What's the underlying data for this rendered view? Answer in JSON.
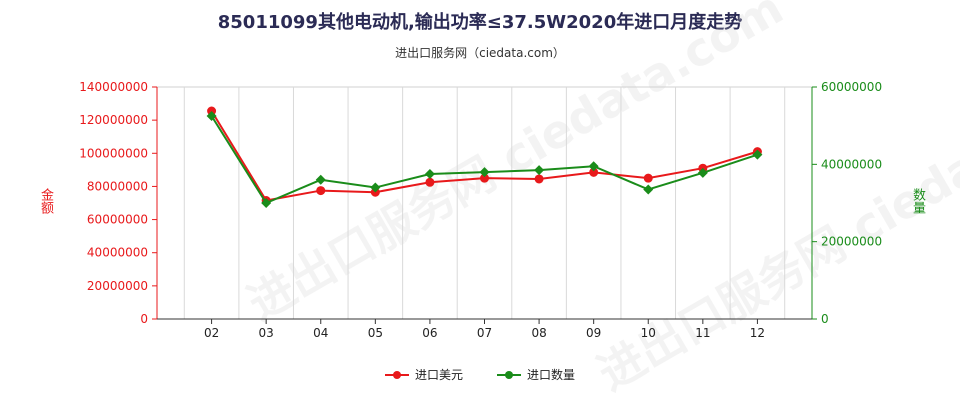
{
  "chart_data": {
    "type": "line",
    "title": "85011099其他电动机,输出功率≤37.5W2020年进口月度走势",
    "subtitle": "进出口服务网（ciedata.com）",
    "watermark": "进出口服务网 ciedata.com",
    "categories": [
      "02",
      "03",
      "04",
      "05",
      "06",
      "07",
      "08",
      "09",
      "10",
      "11",
      "12"
    ],
    "left_axis": {
      "label": "金额",
      "ylim": [
        0,
        140000000
      ],
      "ticks": [
        "0",
        "20000000",
        "40000000",
        "60000000",
        "80000000",
        "100000000",
        "120000000",
        "140000000"
      ],
      "color": "#e8191b"
    },
    "right_axis": {
      "label": "数量",
      "ylim": [
        0,
        60000000
      ],
      "ticks": [
        "0",
        "20000000",
        "40000000",
        "60000000"
      ],
      "color": "#1a8c1a"
    },
    "series": [
      {
        "name": "进口美元",
        "axis": "left",
        "color": "#e8191b",
        "values": [
          125500000,
          71500000,
          77500000,
          76500000,
          82500000,
          85000000,
          84500000,
          88500000,
          85000000,
          91000000,
          101000000
        ]
      },
      {
        "name": "进口数量",
        "axis": "right",
        "color": "#1a8c1a",
        "values": [
          52500000,
          30000000,
          36000000,
          34000000,
          37500000,
          38000000,
          38500000,
          39500000,
          33500000,
          37800000,
          42500000
        ]
      }
    ],
    "grid": true,
    "legend_position": "bottom"
  }
}
